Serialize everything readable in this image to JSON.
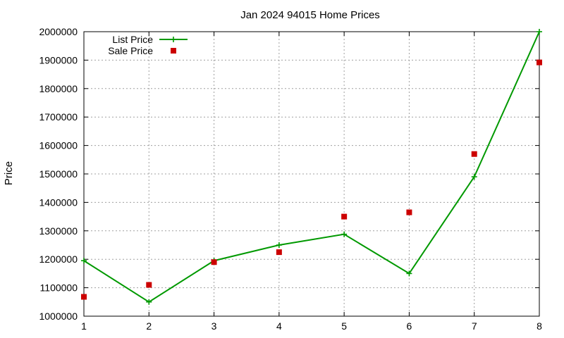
{
  "chart_data": {
    "type": "line",
    "title": "Jan 2024 94015 Home Prices",
    "xlabel": "",
    "ylabel": "Price",
    "x": [
      1,
      2,
      3,
      4,
      5,
      6,
      7,
      8
    ],
    "xlim": [
      1,
      8
    ],
    "ylim": [
      1000000,
      2000000
    ],
    "x_ticks": [
      "1",
      "2",
      "3",
      "4",
      "5",
      "6",
      "7",
      "8"
    ],
    "y_ticks": [
      "1000000",
      "1100000",
      "1200000",
      "1300000",
      "1400000",
      "1500000",
      "1600000",
      "1700000",
      "1800000",
      "1900000",
      "2000000"
    ],
    "grid": true,
    "legend_position": "top-left",
    "series": [
      {
        "name": "List Price",
        "style": "line-with-plus-markers",
        "color": "#009900",
        "values": [
          1195000,
          1050000,
          1195000,
          1250000,
          1288000,
          1150000,
          1490000,
          2000000
        ]
      },
      {
        "name": "Sale Price",
        "style": "square-markers",
        "color": "#cc0000",
        "values": [
          1068000,
          1110000,
          1190000,
          1225000,
          1350000,
          1365000,
          1570000,
          1892000
        ]
      }
    ]
  }
}
